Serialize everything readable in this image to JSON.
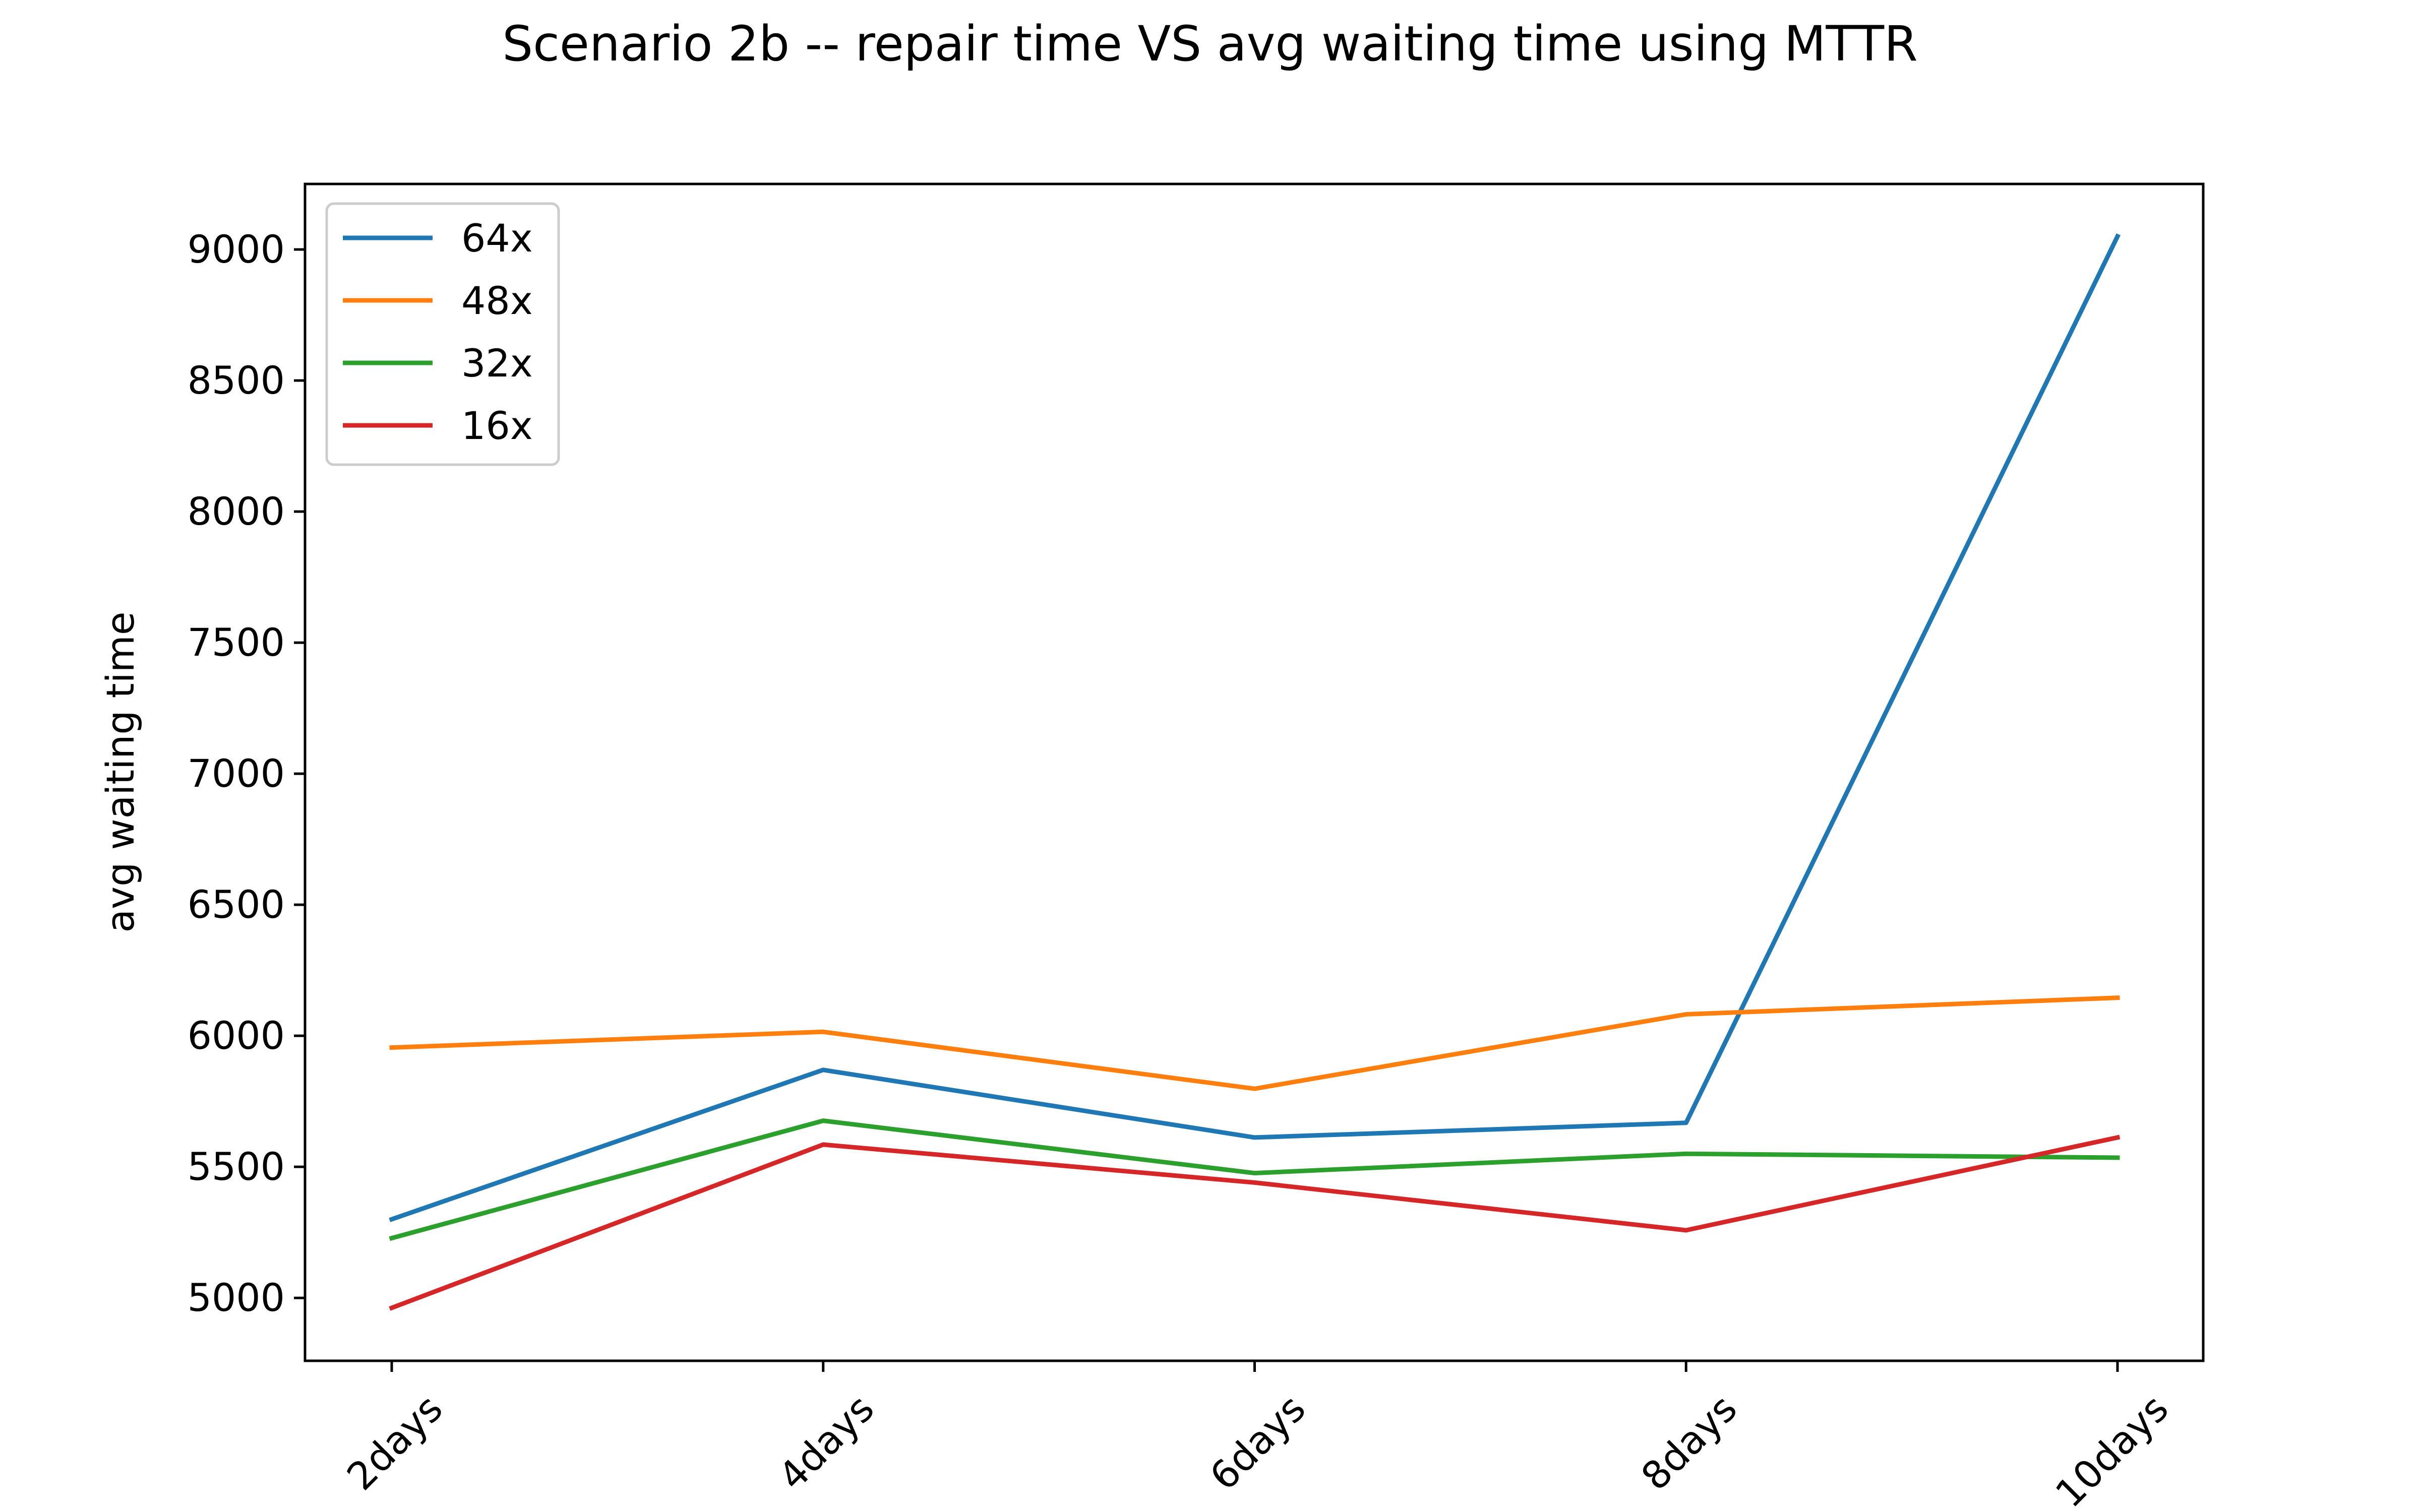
{
  "chart_data": {
    "type": "line",
    "title": "Scenario 2b -- repair time VS avg waiting time using MTTR",
    "xlabel": "",
    "ylabel": "avg waiting time",
    "categories": [
      "2days",
      "4days",
      "6days",
      "8days",
      "10days"
    ],
    "ylim": [
      4760,
      9250
    ],
    "yticks": [
      5000,
      5500,
      6000,
      6500,
      7000,
      7500,
      8000,
      8500,
      9000
    ],
    "xtick_rotation_deg": 45,
    "grid": false,
    "legend_position": "upper left",
    "series": [
      {
        "name": "64x",
        "color": "#1f77b4",
        "values": [
          5300,
          5870,
          5612,
          5668,
          9050
        ]
      },
      {
        "name": "48x",
        "color": "#ff7f0e",
        "values": [
          5955,
          6015,
          5798,
          6082,
          6145
        ]
      },
      {
        "name": "32x",
        "color": "#2ca02c",
        "values": [
          5228,
          5676,
          5476,
          5550,
          5535
        ]
      },
      {
        "name": "16x",
        "color": "#d62728",
        "values": [
          4962,
          5585,
          5440,
          5258,
          5612
        ]
      }
    ]
  }
}
